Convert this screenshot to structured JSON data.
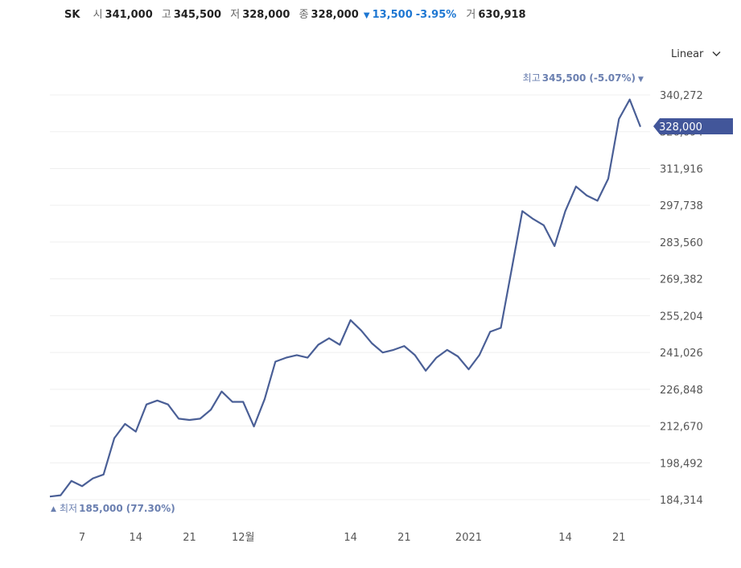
{
  "header": {
    "name": "SK",
    "open_label": "시",
    "open": "341,000",
    "high_label": "고",
    "high": "345,500",
    "low_label": "저",
    "low": "328,000",
    "close_label": "종",
    "close": "328,000",
    "change_arrow": "▼",
    "change": "13,500",
    "change_pct": "-3.95%",
    "volume_label": "거",
    "volume": "630,918"
  },
  "scale_select": {
    "label": "Linear",
    "icon": "chevron-down-icon"
  },
  "colors": {
    "line": "#4a5f96",
    "down": "#1e77d2",
    "annotation": "#6a7fb0",
    "current_tag": "#42569a"
  },
  "chart_data": {
    "type": "line",
    "series": [
      {
        "values": [
          185500,
          186000,
          191500,
          189500,
          192500,
          194000,
          208000,
          213500,
          210500,
          221000,
          222500,
          221000,
          215500,
          215000,
          215500,
          219000,
          226000,
          222000,
          222000,
          212500,
          223000,
          237500,
          239000,
          240000,
          239000,
          244000,
          246500,
          244000,
          253500,
          249500,
          244500,
          241000,
          242000,
          243500,
          240000,
          234000,
          239000,
          242000,
          239500,
          234500,
          240000,
          249000,
          250500,
          273000,
          295500,
          292500,
          290000,
          282000,
          295500,
          305000,
          301500,
          299500,
          308000,
          331000,
          338500,
          328000
        ]
      }
    ],
    "ylim": [
      178000,
      350000
    ],
    "yticks": [
      "340,272",
      "326,094",
      "311,916",
      "297,738",
      "283,560",
      "269,382",
      "255,204",
      "241,026",
      "226,848",
      "212,670",
      "198,492",
      "184,314"
    ],
    "ytick_values": [
      340272,
      326094,
      311916,
      297738,
      283560,
      269382,
      255204,
      241026,
      226848,
      212670,
      198492,
      184314
    ],
    "xticks": [
      {
        "label": "7",
        "index": 3
      },
      {
        "label": "14",
        "index": 8
      },
      {
        "label": "21",
        "index": 13
      },
      {
        "label": "12월",
        "index": 18
      },
      {
        "label": "14",
        "index": 28
      },
      {
        "label": "21",
        "index": 33
      },
      {
        "label": "2021",
        "index": 39
      },
      {
        "label": "14",
        "index": 48
      },
      {
        "label": "21",
        "index": 53
      }
    ],
    "max_annotation": {
      "label": "최고",
      "value": "345,500",
      "pct": "(-5.07%)",
      "arrow": "▼"
    },
    "min_annotation": {
      "label": "최저",
      "value": "185,000",
      "pct": "(77.30%)",
      "arrow": "▲"
    },
    "current_value": "328,000",
    "grid": true
  }
}
